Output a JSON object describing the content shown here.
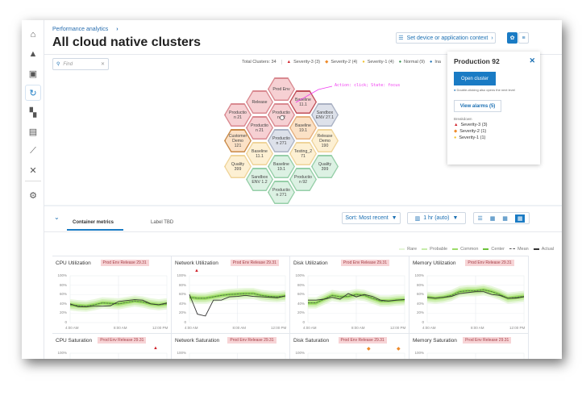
{
  "sidebar": {
    "items": [
      {
        "icon": "home-icon"
      },
      {
        "icon": "alert-triangle-icon"
      },
      {
        "icon": "window-icon"
      },
      {
        "icon": "refresh-cluster-icon",
        "active": true
      },
      {
        "icon": "dashboard-icon"
      },
      {
        "icon": "clipboard-icon"
      },
      {
        "icon": "line-chart-icon"
      },
      {
        "icon": "tools-icon"
      },
      {
        "icon": "settings-gear-icon"
      }
    ]
  },
  "header": {
    "breadcrumb": "Performance analytics",
    "title": "All cloud native clusters",
    "context_button": "Set device or application context",
    "view_hex": "hex-view-icon",
    "view_list": "list-view-icon"
  },
  "filter": {
    "search_placeholder": "Find",
    "total": "Total Clusters: 34",
    "legend": [
      {
        "label": "Severity-3 (3)",
        "color": "#d0222b",
        "shape": "▲"
      },
      {
        "label": "Severity-2 (4)",
        "color": "#ee8a2a",
        "shape": "◆"
      },
      {
        "label": "Severity-1 (4)",
        "color": "#f2c230",
        "shape": "●"
      },
      {
        "label": "Normal (9)",
        "color": "#2e8b47",
        "shape": "●"
      },
      {
        "label": "Ina",
        "color": "#1a6fb3",
        "shape": "●"
      }
    ]
  },
  "annotation": "Action: click; State: focus",
  "colors": {
    "red": [
      "#f6d0d3",
      "#d98990"
    ],
    "redDark": [
      "#f6d0d3",
      "#c0505a"
    ],
    "orange": [
      "#fbe1c6",
      "#e6b07e"
    ],
    "orangeDark": [
      "#fbe1c6",
      "#c98a48"
    ],
    "yellow": [
      "#fdf0d3",
      "#efd49a"
    ],
    "gray": [
      "#dde1ea",
      "#aab2c4"
    ],
    "green": [
      "#dcf1e3",
      "#96cfa8"
    ]
  },
  "hexes": [
    {
      "label": "Prod Env",
      "status": "red"
    },
    {
      "label": "Release",
      "status": "red"
    },
    {
      "label": "Baseline 11.1",
      "status": "redDark"
    },
    {
      "label": "Productio n 21",
      "status": "red"
    },
    {
      "label": "Productio n 92",
      "status": "red"
    },
    {
      "label": "Sandbox ENV 27.1",
      "status": "gray"
    },
    {
      "label": "Productio n 21",
      "status": "red"
    },
    {
      "label": "Baseline 19.1",
      "status": "orange"
    },
    {
      "label": "Customer Demo 121",
      "status": "orangeDark"
    },
    {
      "label": "Productio n 271",
      "status": "gray"
    },
    {
      "label": "Release Demo 190",
      "status": "yellow"
    },
    {
      "label": "Baseline 11.1",
      "status": "yellow"
    },
    {
      "label": "Testing_2 71",
      "status": "yellow"
    },
    {
      "label": "Quality 399",
      "status": "yellow"
    },
    {
      "label": "Baseline 19.1",
      "status": "green"
    },
    {
      "label": "Quality 399",
      "status": "green"
    },
    {
      "label": "Sandbox ENV 1.2",
      "status": "green"
    },
    {
      "label": "Productio n 92",
      "status": "green"
    },
    {
      "label": "Productio n 271",
      "status": "green"
    }
  ],
  "panel": {
    "title": "Production 92",
    "open": "Open cluster",
    "hint": "Double-clicking also opens the next level",
    "alarms": "View alarms (5)",
    "breakdown": "Breakdown",
    "items": [
      {
        "label": "Severity-3 (3)",
        "color": "#d0222b",
        "shape": "▲"
      },
      {
        "label": "Severity-2 (1)",
        "color": "#ee8a2a",
        "shape": "◆"
      },
      {
        "label": "Severity-1 (1)",
        "color": "#f2c230",
        "shape": "●"
      }
    ]
  },
  "metrics": {
    "tabs": [
      "Container metrics",
      "Label TBD"
    ],
    "sort": "Sort: Most recent",
    "range": "1 hr (auto)",
    "legend": [
      "Rare",
      "Probable",
      "Common",
      "Center",
      "Mean",
      "Actual"
    ],
    "yticks": [
      "100%",
      "80%",
      "60%",
      "40%",
      "20%",
      "0"
    ],
    "xticks": [
      "4:00 AM",
      "8:00 AM",
      "12:00 PM"
    ],
    "charts": [
      {
        "title": "CPU Utilization",
        "badge": "Prod Env Release 29.31",
        "mean": [
          38,
          36,
          35,
          38,
          42,
          41,
          40,
          43,
          46,
          44,
          40,
          38,
          40
        ],
        "actual": [
          40,
          34,
          34,
          35,
          35,
          36,
          45,
          47,
          49,
          48,
          40,
          38,
          42
        ]
      },
      {
        "title": "Network Utilization",
        "badge": "Prod Env Release 29.31",
        "alert": "severity-3",
        "mean": [
          54,
          52,
          52,
          55,
          58,
          60,
          61,
          62,
          62,
          58,
          56,
          55,
          57
        ],
        "actual": [
          60,
          18,
          14,
          48,
          48,
          55,
          56,
          58,
          56,
          55,
          54,
          53,
          57
        ]
      },
      {
        "title": "Disk Utilization",
        "badge": "Prod Env Release 29.31",
        "mean": [
          42,
          42,
          50,
          58,
          55,
          56,
          60,
          58,
          52,
          46,
          46,
          48,
          49
        ],
        "actual": [
          48,
          48,
          50,
          54,
          50,
          62,
          55,
          60,
          56,
          48,
          46,
          48,
          49
        ]
      },
      {
        "title": "Memory Utilization",
        "badge": "Prod Env Release 29.31",
        "mean": [
          54,
          52,
          54,
          58,
          66,
          68,
          68,
          70,
          66,
          60,
          52,
          54,
          56
        ],
        "actual": [
          54,
          52,
          54,
          56,
          62,
          64,
          66,
          66,
          60,
          58,
          52,
          52,
          55
        ]
      },
      {
        "title": "CPU Saturation",
        "badge": "Prod Env Release 29.31",
        "alert": "severity-3"
      },
      {
        "title": "Network Saturation",
        "badge": "Prod Env Release 29.31"
      },
      {
        "title": "Disk Saturation",
        "badge": "Prod Env Release 29.31",
        "alert": "severity-2"
      },
      {
        "title": "Memory Saturation",
        "badge": "Prod Env Release 29.31"
      }
    ]
  }
}
